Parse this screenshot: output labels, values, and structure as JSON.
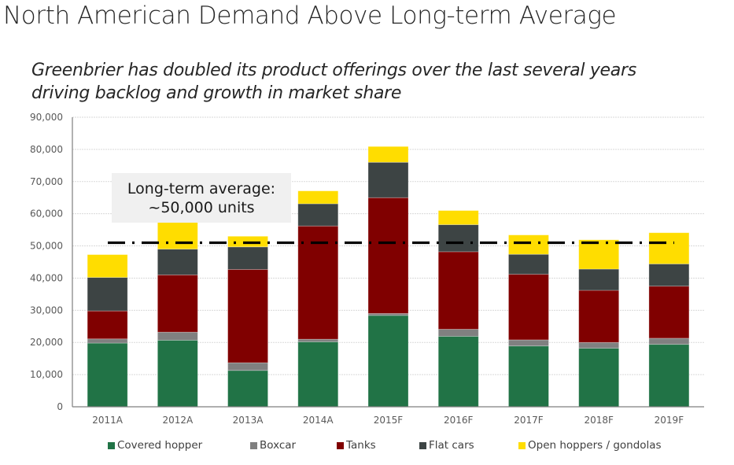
{
  "slide": {
    "title": "North American Demand Above Long-term Average",
    "subtitle_lines": [
      "Greenbrier has doubled its product offerings over the last several years",
      "driving backlog and growth in market share"
    ]
  },
  "callout": {
    "line1": "Long-term average:",
    "line2": "~50,000 units"
  },
  "chart_data": {
    "type": "bar",
    "stacked": true,
    "title": "",
    "xlabel": "",
    "ylabel": "",
    "categories": [
      "2011A",
      "2012A",
      "2013A",
      "2014A",
      "2015F",
      "2016F",
      "2017F",
      "2018F",
      "2019F"
    ],
    "ylim": [
      0,
      90000
    ],
    "yticks": [
      0,
      10000,
      20000,
      30000,
      40000,
      50000,
      60000,
      70000,
      80000,
      90000
    ],
    "ytick_labels": [
      "0",
      "10,000",
      "20,000",
      "30,000",
      "40,000",
      "50,000",
      "60,000",
      "70,000",
      "80,000",
      "90,000"
    ],
    "grid": true,
    "legend_position": "bottom",
    "series": [
      {
        "name": "Covered hopper",
        "color": "#217346",
        "values": [
          19800,
          20700,
          11300,
          20200,
          28400,
          21900,
          18900,
          18200,
          19400
        ]
      },
      {
        "name": "Boxcar",
        "color": "#808080",
        "values": [
          1300,
          2500,
          2400,
          800,
          600,
          2200,
          1900,
          1800,
          1900
        ]
      },
      {
        "name": "Tanks",
        "color": "#800000",
        "values": [
          8700,
          17800,
          29000,
          35200,
          36000,
          24100,
          20400,
          16200,
          16200
        ]
      },
      {
        "name": "Flat cars",
        "color": "#3d4444",
        "values": [
          10400,
          8000,
          7000,
          6900,
          11000,
          8400,
          6200,
          6600,
          6900
        ]
      },
      {
        "name": "Open hoppers / gondolas",
        "color": "#ffdd00",
        "values": [
          7100,
          8300,
          3300,
          4000,
          4900,
          4400,
          6000,
          9100,
          9700
        ]
      }
    ],
    "reference_line": {
      "label": "Long-term average: ~50,000 units",
      "value": 51000,
      "style": "dash-dot",
      "color": "#000000"
    }
  }
}
